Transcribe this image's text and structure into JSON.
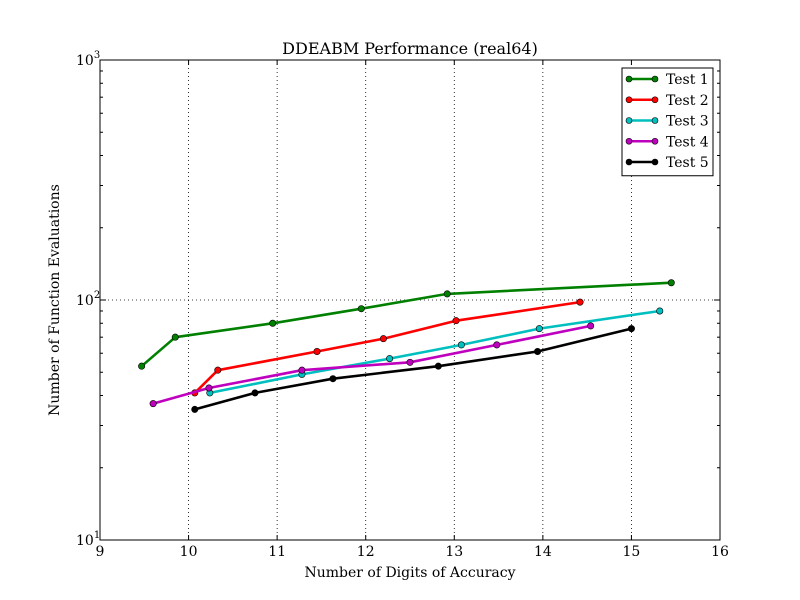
{
  "chart_data": {
    "type": "line",
    "title": "DDEABM Performance (real64)",
    "xlabel": "Number of Digits of Accuracy",
    "ylabel": "Number of Function Evaluations",
    "xlim": [
      9,
      16
    ],
    "ylim": [
      10,
      1000
    ],
    "yscale": "log",
    "x_ticks": [
      "9",
      "10",
      "11",
      "12",
      "13",
      "14",
      "15",
      "16"
    ],
    "y_ticks": [
      {
        "value": 10,
        "base": "10",
        "exp": "1"
      },
      {
        "value": 100,
        "base": "10",
        "exp": "2"
      },
      {
        "value": 1000,
        "base": "10",
        "exp": "3"
      }
    ],
    "grid": true,
    "legend_position": "top-right",
    "series": [
      {
        "name": "Test 1",
        "color": "#008000",
        "x": [
          9.47,
          9.85,
          10.95,
          11.95,
          12.92,
          15.45
        ],
        "y": [
          53,
          70,
          80,
          92,
          106,
          118
        ]
      },
      {
        "name": "Test 2",
        "color": "#ff0000",
        "x": [
          10.07,
          10.33,
          11.45,
          12.2,
          13.02,
          14.42
        ],
        "y": [
          41,
          51,
          61,
          69,
          82,
          98
        ]
      },
      {
        "name": "Test 3",
        "color": "#00bfbf",
        "x": [
          10.24,
          11.28,
          12.27,
          13.08,
          13.96,
          15.32
        ],
        "y": [
          41,
          49,
          57,
          65,
          76,
          90
        ]
      },
      {
        "name": "Test 4",
        "color": "#bf00bf",
        "x": [
          9.6,
          10.23,
          11.28,
          12.5,
          13.48,
          14.54
        ],
        "y": [
          37,
          43,
          51,
          55,
          65,
          78
        ]
      },
      {
        "name": "Test 5",
        "color": "#000000",
        "x": [
          10.07,
          10.75,
          11.63,
          12.82,
          13.94,
          15.0
        ],
        "y": [
          35,
          41,
          47,
          53,
          61,
          76
        ]
      }
    ]
  }
}
